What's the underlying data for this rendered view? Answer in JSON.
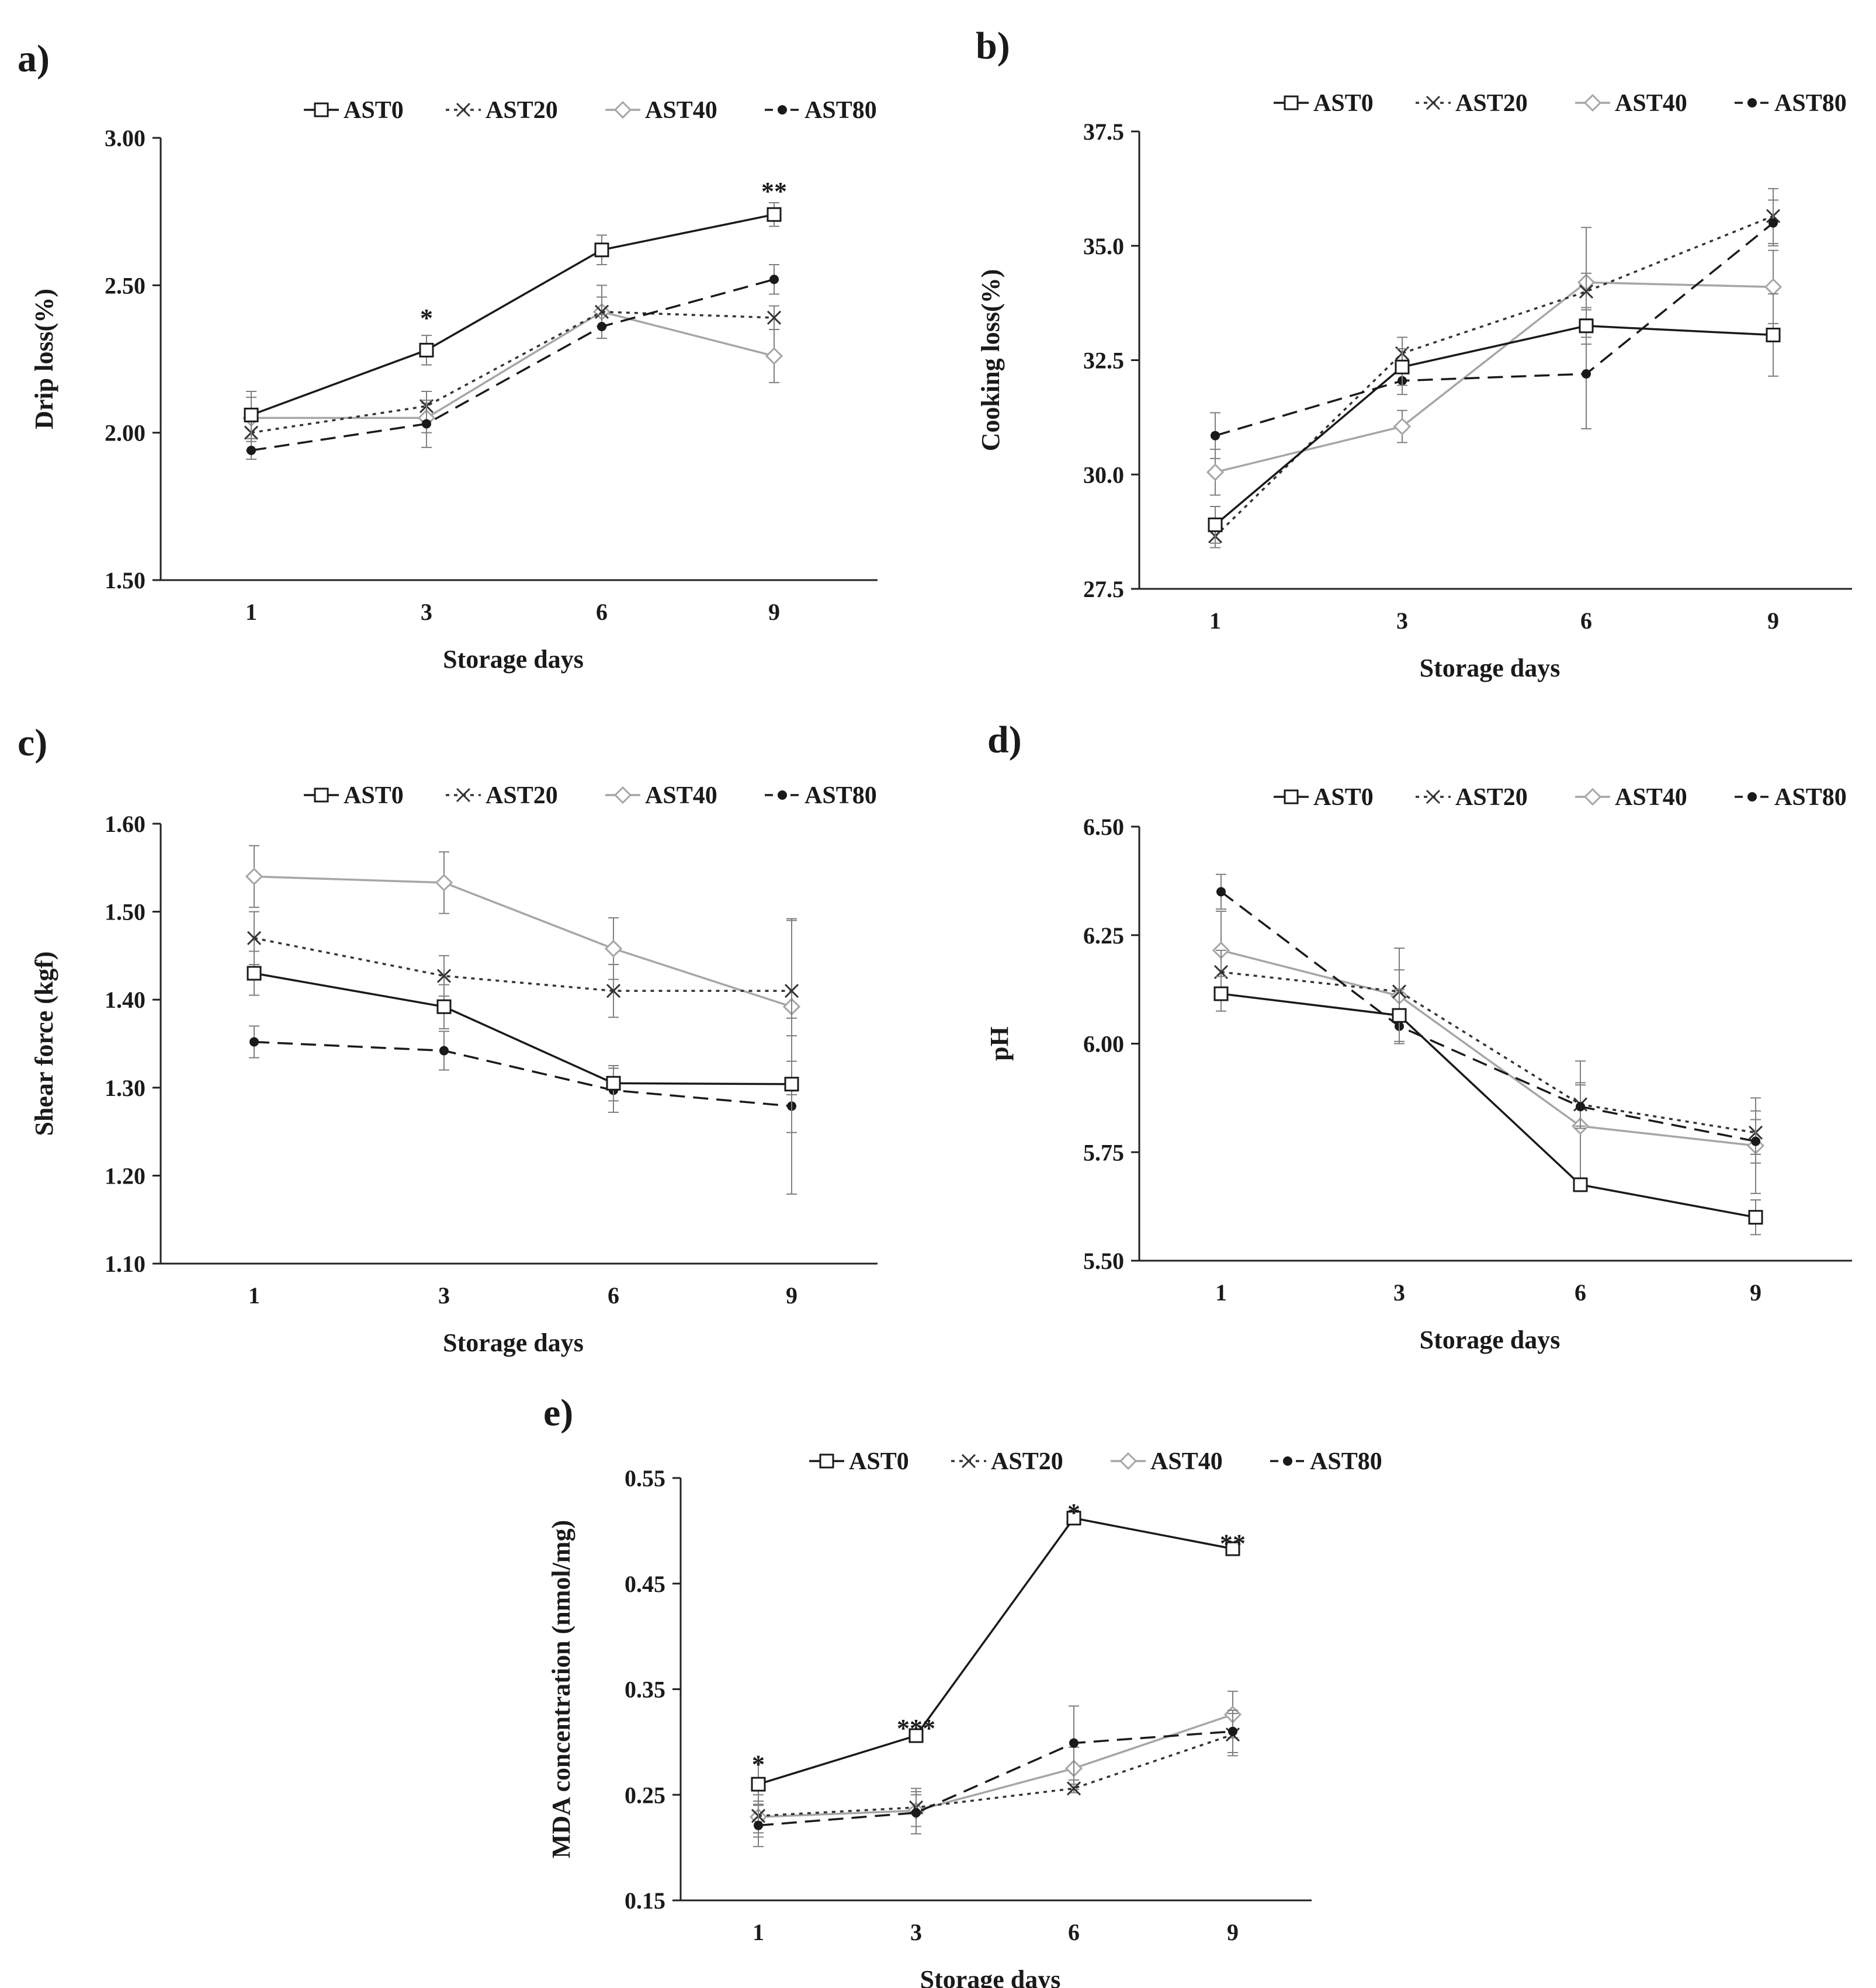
{
  "series_styles": {
    "AST0": {
      "color": "#1a1a1a",
      "dash": "",
      "marker": "square"
    },
    "AST20": {
      "color": "#333333",
      "dash": "6,8",
      "marker": "cross"
    },
    "AST40": {
      "color": "#a6a6a6",
      "dash": "",
      "marker": "diamond"
    },
    "AST80": {
      "color": "#1a1a1a",
      "dash": "26,14",
      "marker": "dot"
    }
  },
  "chart_data": [
    {
      "panel": "a)",
      "type": "line",
      "categories": [
        "1",
        "3",
        "6",
        "9"
      ],
      "xlabel": "Storage days",
      "ylabel": "Drip loss(%)",
      "ylim": [
        1.5,
        3.0
      ],
      "yticks": [
        "1.50",
        "2.00",
        "2.50",
        "3.00"
      ],
      "legend": [
        "AST0",
        "AST20",
        "AST40",
        "AST80"
      ],
      "series": [
        {
          "name": "AST0",
          "values": [
            2.06,
            2.28,
            2.62,
            2.74
          ],
          "errors": [
            0.08,
            0.05,
            0.05,
            0.04
          ]
        },
        {
          "name": "AST20",
          "values": [
            2.0,
            2.09,
            2.41,
            2.39
          ],
          "errors": [
            0.06,
            0.05,
            0.05,
            0.04
          ]
        },
        {
          "name": "AST40",
          "values": [
            2.05,
            2.05,
            2.41,
            2.26
          ],
          "errors": [
            0.07,
            0.05,
            0.09,
            0.09
          ]
        },
        {
          "name": "AST80",
          "values": [
            1.94,
            2.03,
            2.36,
            2.52
          ],
          "errors": [
            0.03,
            0.08,
            0.04,
            0.05
          ]
        }
      ],
      "annotations": [
        {
          "category": "3",
          "value": 2.4,
          "text": "*"
        },
        {
          "category": "9",
          "value": 2.83,
          "text": "**"
        }
      ]
    },
    {
      "panel": "b)",
      "type": "line",
      "categories": [
        "1",
        "3",
        "6",
        "9"
      ],
      "xlabel": "Storage days",
      "ylabel": "Cooking loss(%)",
      "ylim": [
        27.5,
        37.5
      ],
      "yticks": [
        "27.5",
        "30.0",
        "32.5",
        "35.0",
        "37.5"
      ],
      "legend": [
        "AST0",
        "AST20",
        "AST40",
        "AST80"
      ],
      "series": [
        {
          "name": "AST0",
          "values": [
            28.9,
            32.35,
            33.25,
            33.05
          ],
          "errors": [
            0.4,
            0.4,
            0.4,
            0.9
          ]
        },
        {
          "name": "AST20",
          "values": [
            28.65,
            32.65,
            34.0,
            35.65
          ],
          "errors": [
            0.25,
            0.35,
            0.4,
            0.6
          ]
        },
        {
          "name": "AST40",
          "values": [
            30.05,
            31.05,
            34.2,
            34.1
          ],
          "errors": [
            0.5,
            0.35,
            1.2,
            0.8
          ]
        },
        {
          "name": "AST80",
          "values": [
            30.85,
            32.05,
            32.2,
            35.5
          ],
          "errors": [
            0.5,
            0.3,
            1.2,
            0.5
          ]
        }
      ],
      "annotations": []
    },
    {
      "panel": "c)",
      "type": "line",
      "categories": [
        "1",
        "3",
        "6",
        "9"
      ],
      "xlabel": "Storage days",
      "ylabel": "Shear force (kgf)",
      "ylim": [
        1.1,
        1.6
      ],
      "yticks": [
        "1.10",
        "1.20",
        "1.30",
        "1.40",
        "1.50",
        "1.60"
      ],
      "legend": [
        "AST0",
        "AST20",
        "AST40",
        "AST80"
      ],
      "series": [
        {
          "name": "AST0",
          "values": [
            1.43,
            1.392,
            1.305,
            1.304
          ],
          "errors": [
            0.025,
            0.025,
            0.02,
            0.055
          ]
        },
        {
          "name": "AST20",
          "values": [
            1.47,
            1.427,
            1.41,
            1.41
          ],
          "errors": [
            0.03,
            0.023,
            0.03,
            0.08
          ]
        },
        {
          "name": "AST40",
          "values": [
            1.54,
            1.533,
            1.458,
            1.392
          ],
          "errors": [
            0.035,
            0.035,
            0.035,
            0.1
          ]
        },
        {
          "name": "AST80",
          "values": [
            1.352,
            1.342,
            1.297,
            1.279
          ],
          "errors": [
            0.018,
            0.022,
            0.025,
            0.1
          ]
        }
      ],
      "annotations": []
    },
    {
      "panel": "d)",
      "type": "line",
      "categories": [
        "1",
        "3",
        "6",
        "9"
      ],
      "xlabel": "Storage days",
      "ylabel": "pH",
      "ylim": [
        5.5,
        6.5
      ],
      "yticks": [
        "5.50",
        "5.75",
        "6.00",
        "6.25",
        "6.50"
      ],
      "legend": [
        "AST0",
        "AST20",
        "AST40",
        "AST80"
      ],
      "series": [
        {
          "name": "AST0",
          "values": [
            6.115,
            6.065,
            5.675,
            5.6
          ],
          "errors": [
            0.04,
            0.06,
            0.015,
            0.04
          ]
        },
        {
          "name": "AST20",
          "values": [
            6.165,
            6.12,
            5.86,
            5.795
          ],
          "errors": [
            0.05,
            0.05,
            0.05,
            0.05
          ]
        },
        {
          "name": "AST40",
          "values": [
            6.215,
            6.11,
            5.81,
            5.765
          ],
          "errors": [
            0.09,
            0.11,
            0.15,
            0.11
          ]
        },
        {
          "name": "AST80",
          "values": [
            6.35,
            6.04,
            5.855,
            5.775
          ],
          "errors": [
            0.04,
            0.04,
            0.05,
            0.05
          ]
        }
      ],
      "annotations": []
    },
    {
      "panel": "e)",
      "type": "line",
      "categories": [
        "1",
        "3",
        "6",
        "9"
      ],
      "xlabel": "Storage days",
      "ylabel": "MDA concentration (nmol/mg)",
      "ylim": [
        0.15,
        0.55
      ],
      "yticks": [
        "0.15",
        "0.25",
        "0.35",
        "0.45",
        "0.55"
      ],
      "legend": [
        "AST0",
        "AST20",
        "AST40",
        "AST80"
      ],
      "series": [
        {
          "name": "AST0",
          "values": [
            0.26,
            0.306,
            0.512,
            0.483
          ],
          "errors": [
            0.02,
            0.005,
            0.005,
            0.003
          ]
        },
        {
          "name": "AST20",
          "values": [
            0.23,
            0.238,
            0.256,
            0.307
          ],
          "errors": [
            0.02,
            0.018,
            0.004,
            0.02
          ]
        },
        {
          "name": "AST40",
          "values": [
            0.229,
            0.235,
            0.275,
            0.326
          ],
          "errors": [
            0.015,
            0.015,
            0.02,
            0.022
          ]
        },
        {
          "name": "AST80",
          "values": [
            0.221,
            0.233,
            0.299,
            0.31
          ],
          "errors": [
            0.02,
            0.02,
            0.035,
            0.02
          ]
        }
      ],
      "annotations": [
        {
          "category": "1",
          "value": 0.282,
          "text": "*"
        },
        {
          "category": "3",
          "value": 0.316,
          "text": "***"
        },
        {
          "category": "6",
          "value": 0.52,
          "text": "*"
        },
        {
          "category": "9",
          "value": 0.491,
          "text": "**"
        }
      ]
    }
  ]
}
